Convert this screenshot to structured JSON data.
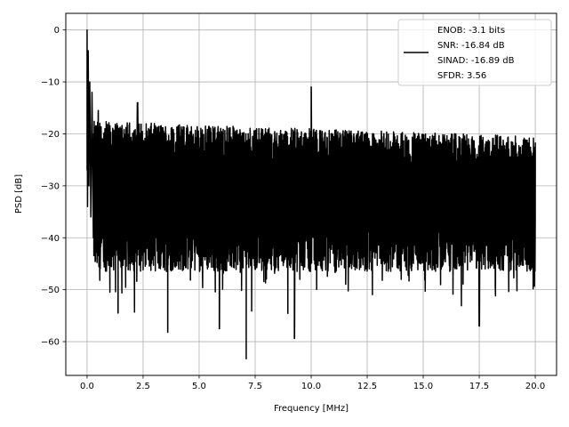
{
  "chart_data": {
    "type": "line",
    "title": "",
    "xlabel": "Frequency [MHz]",
    "ylabel": "PSD [dB]",
    "xlim": [
      -0.95,
      20.95
    ],
    "ylim": [
      -66.5,
      3.2
    ],
    "x_ticks": [
      0.0,
      2.5,
      5.0,
      7.5,
      10.0,
      12.5,
      15.0,
      17.5,
      20.0
    ],
    "x_tick_labels": [
      "0.0",
      "2.5",
      "5.0",
      "7.5",
      "10.0",
      "12.5",
      "15.0",
      "17.5",
      "20.0"
    ],
    "y_ticks": [
      0,
      -10,
      -20,
      -30,
      -40,
      -50,
      -60
    ],
    "y_tick_labels": [
      "0",
      "−10",
      "−20",
      "−30",
      "−40",
      "−50",
      "−60"
    ],
    "grid": true,
    "legend_position": "top-right",
    "series": [
      {
        "name": "ENOB: -3.1 bits\nSNR: -16.84 dB\nSINAD: -16.89 dB\nSFDR: 3.56",
        "color": "#000000",
        "description": "noise-like PSD across 0–20 MHz, band roughly -20 to -42 dB",
        "peaks": [
          {
            "x": 0.0,
            "y": 0.0
          },
          {
            "x": 0.22,
            "y": -12.0
          },
          {
            "x": 0.5,
            "y": -15.5
          },
          {
            "x": 2.25,
            "y": -14.0
          },
          {
            "x": 10.0,
            "y": -11.0
          }
        ],
        "dips": [
          {
            "x": 1.38,
            "y": -54.5
          },
          {
            "x": 3.6,
            "y": -58.2
          },
          {
            "x": 5.9,
            "y": -57.5
          },
          {
            "x": 7.1,
            "y": -63.3
          },
          {
            "x": 9.25,
            "y": -59.4
          },
          {
            "x": 17.5,
            "y": -57.0
          }
        ],
        "noise_band": {
          "upper_mean": -21.0,
          "upper_jitter": 3.5,
          "lower_mean": -41.5,
          "lower_jitter": 5.0
        }
      }
    ]
  },
  "legend": {
    "lines": [
      "ENOB: -3.1 bits",
      "SNR: -16.84 dB",
      "SINAD: -16.89 dB",
      "SFDR: 3.56"
    ]
  }
}
